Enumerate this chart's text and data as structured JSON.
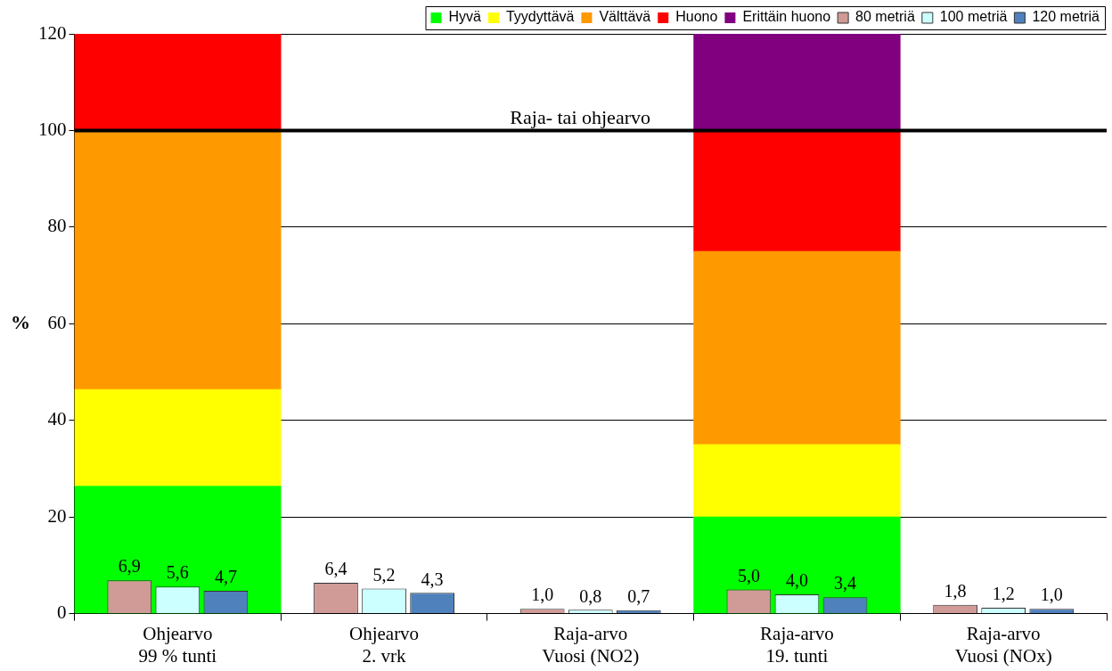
{
  "chart_data": {
    "type": "bar",
    "ylabel": "%",
    "categories": [
      "Ohjearvo\n99 % tunti",
      "Ohjearvo\n2. vrk",
      "Raja-arvo\nVuosi (NO2)",
      "Raja-arvo\n19. tunti",
      "Raja-arvo\nVuosi (NOx)"
    ],
    "series": [
      {
        "name": "Hyvä",
        "color": "#00ff00",
        "base": [
          0,
          null,
          null,
          0,
          null
        ],
        "values": [
          26.4,
          null,
          null,
          20,
          null
        ]
      },
      {
        "name": "Tyydyttävä",
        "color": "#ffff00",
        "base": [
          26.4,
          null,
          null,
          20,
          null
        ],
        "values": [
          20,
          null,
          null,
          15,
          null
        ]
      },
      {
        "name": "Välttävä",
        "color": "#ff9900",
        "base": [
          46.4,
          null,
          null,
          35,
          null
        ],
        "values": [
          53.6,
          null,
          null,
          40,
          null
        ]
      },
      {
        "name": "Huono",
        "color": "#ff0000",
        "base": [
          100,
          null,
          null,
          75,
          null
        ],
        "values": [
          20,
          null,
          null,
          25,
          null
        ]
      },
      {
        "name": "Erittäin huono",
        "color": "#800080",
        "base": [
          null,
          null,
          null,
          100,
          null
        ],
        "values": [
          null,
          null,
          null,
          20,
          null
        ]
      },
      {
        "name": "80 metriä",
        "color": "#d09a96",
        "values": [
          6.9,
          6.4,
          1.0,
          5.0,
          1.8
        ],
        "value_labels": [
          "6,9",
          "6,4",
          "1,0",
          "5,0",
          "1,8"
        ]
      },
      {
        "name": "100 metriä",
        "color": "#ccffff",
        "values": [
          5.6,
          5.2,
          0.8,
          4.0,
          1.2
        ],
        "value_labels": [
          "5,6",
          "5,2",
          "0,8",
          "4,0",
          "1,2"
        ]
      },
      {
        "name": "120 metriä",
        "color": "#4f81bd",
        "values": [
          4.7,
          4.3,
          0.7,
          3.4,
          1.0
        ],
        "value_labels": [
          "4,7",
          "4,3",
          "0,7",
          "3,4",
          "1,0"
        ]
      }
    ],
    "ylim": [
      0,
      120
    ],
    "yticks": [
      0,
      20,
      40,
      60,
      80,
      100,
      120
    ],
    "grid": "y",
    "legend": "top right",
    "ref_lines": [
      {
        "axis": "y",
        "value": 100,
        "label": "Raja- tai ohjearvo",
        "color": "#000000"
      }
    ]
  }
}
